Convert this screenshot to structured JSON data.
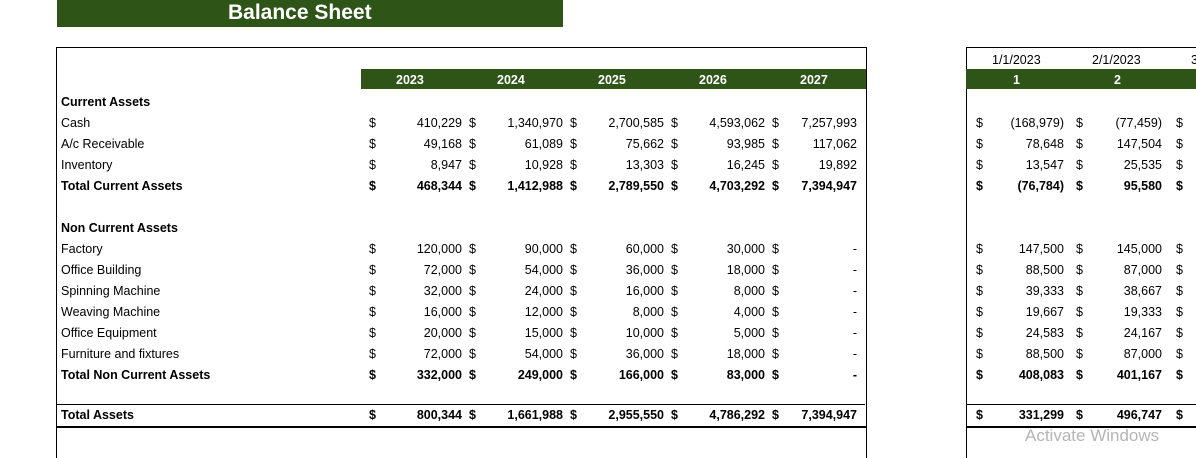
{
  "title": "Balance Sheet",
  "years": [
    "2023",
    "2024",
    "2025",
    "2026",
    "2027"
  ],
  "right_panel": {
    "dates": [
      "1/1/2023",
      "2/1/2023",
      "3"
    ],
    "periods": [
      "1",
      "2"
    ]
  },
  "currency_symbol": "$",
  "sections": {
    "current_assets": "Current Assets",
    "non_current_assets": "Non Current Assets"
  },
  "rows": [
    {
      "key": "cash",
      "label": "Cash",
      "bold": false,
      "values": [
        "410,229",
        "1,340,970",
        "2,700,585",
        "4,593,062",
        "7,257,993"
      ],
      "right": [
        "(168,979)",
        "(77,459)"
      ]
    },
    {
      "key": "ar",
      "label": "A/c Receivable",
      "bold": false,
      "values": [
        "49,168",
        "61,089",
        "75,662",
        "93,985",
        "117,062"
      ],
      "right": [
        "78,648",
        "147,504"
      ]
    },
    {
      "key": "inventory",
      "label": "Inventory",
      "bold": false,
      "values": [
        "8,947",
        "10,928",
        "13,303",
        "16,245",
        "19,892"
      ],
      "right": [
        "13,547",
        "25,535"
      ]
    },
    {
      "key": "total_current",
      "label": "Total Current Assets",
      "bold": true,
      "values": [
        "468,344",
        "1,412,988",
        "2,789,550",
        "4,703,292",
        "7,394,947"
      ],
      "right": [
        "(76,784)",
        "95,580"
      ]
    },
    {
      "key": "factory",
      "label": "Factory",
      "bold": false,
      "values": [
        "120,000",
        "90,000",
        "60,000",
        "30,000",
        "-"
      ],
      "right": [
        "147,500",
        "145,000"
      ]
    },
    {
      "key": "office_building",
      "label": "Office Building",
      "bold": false,
      "values": [
        "72,000",
        "54,000",
        "36,000",
        "18,000",
        "-"
      ],
      "right": [
        "88,500",
        "87,000"
      ]
    },
    {
      "key": "spinning",
      "label": "Spinning Machine",
      "bold": false,
      "values": [
        "32,000",
        "24,000",
        "16,000",
        "8,000",
        "-"
      ],
      "right": [
        "39,333",
        "38,667"
      ]
    },
    {
      "key": "weaving",
      "label": "Weaving Machine",
      "bold": false,
      "values": [
        "16,000",
        "12,000",
        "8,000",
        "4,000",
        "-"
      ],
      "right": [
        "19,667",
        "19,333"
      ]
    },
    {
      "key": "office_equipment",
      "label": "Office Equipment",
      "bold": false,
      "values": [
        "20,000",
        "15,000",
        "10,000",
        "5,000",
        "-"
      ],
      "right": [
        "24,583",
        "24,167"
      ]
    },
    {
      "key": "furniture",
      "label": "Furniture and fixtures",
      "bold": false,
      "values": [
        "72,000",
        "54,000",
        "36,000",
        "18,000",
        "-"
      ],
      "right": [
        "88,500",
        "87,000"
      ]
    },
    {
      "key": "total_non_current",
      "label": "Total Non Current Assets",
      "bold": true,
      "values": [
        "332,000",
        "249,000",
        "166,000",
        "83,000",
        "-"
      ],
      "right": [
        "408,083",
        "401,167"
      ]
    },
    {
      "key": "total_assets",
      "label": "Total Assets",
      "bold": true,
      "values": [
        "800,344",
        "1,661,988",
        "2,955,550",
        "4,786,292",
        "7,394,947"
      ],
      "right": [
        "331,299",
        "496,747"
      ]
    }
  ],
  "watermark": "Activate Windows"
}
